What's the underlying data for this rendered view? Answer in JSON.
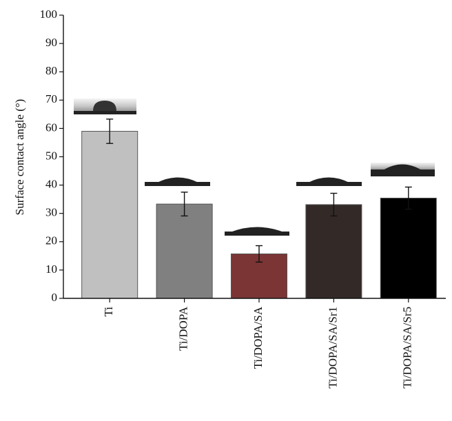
{
  "chart_data": {
    "type": "bar",
    "y_label": "Surface contact angle (°)",
    "categories": [
      "Ti",
      "Ti/DOPA",
      "Ti/DOPA/SA",
      "Ti/DOPA/SA/Sr1",
      "Ti/DOPA/SA/Sr5"
    ],
    "values": [
      59,
      33.3,
      15.7,
      33.1,
      35.4
    ],
    "errors": [
      4.3,
      4.2,
      2.9,
      4.0,
      3.9
    ],
    "colors": [
      "#c0c0c0",
      "#808080",
      "#7b3535",
      "#332a28",
      "#000000"
    ],
    "ylim": [
      0,
      100
    ],
    "yticks": [
      0,
      10,
      20,
      30,
      40,
      50,
      60,
      70,
      80,
      90,
      100
    ]
  }
}
